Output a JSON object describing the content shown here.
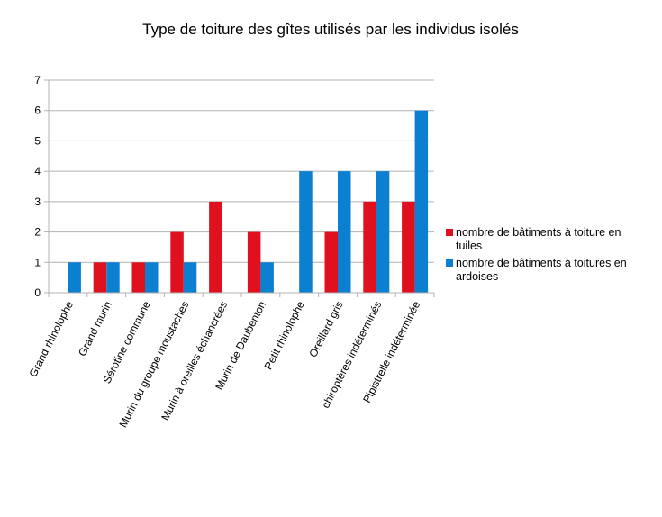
{
  "chart_data": {
    "type": "bar",
    "title": "Type de toiture des gîtes utilisés par les individus isolés",
    "xlabel": "",
    "ylabel": "",
    "ylim": [
      0,
      7
    ],
    "yticks": [
      0,
      1,
      2,
      3,
      4,
      5,
      6,
      7
    ],
    "grid": true,
    "legend_position": "right",
    "categories": [
      "Grand rhinolophe",
      "Grand murin",
      "Sérotine commune",
      "Murin du groupe moustaches",
      "Murin à oreilles échancrées",
      "Murin de Daubenton",
      "Petit rhinolophe",
      "Oreillard gris",
      "chiroptères indéterminés",
      "Pipistrelle indéterminée"
    ],
    "series": [
      {
        "name": "nombre de bâtiments à toiture en tuiles",
        "legend_lines": [
          "nombre de bâtiments à toiture en",
          "tuiles"
        ],
        "color": "#e0101e",
        "values": [
          0,
          1,
          1,
          2,
          3,
          2,
          0,
          2,
          3,
          3
        ]
      },
      {
        "name": "nombre de bâtiments à toitures en ardoises",
        "legend_lines": [
          "nombre de bâtiments à toitures en",
          "ardoises"
        ],
        "color": "#0b7fd0",
        "values": [
          1,
          1,
          1,
          1,
          0,
          1,
          4,
          4,
          4,
          6
        ]
      }
    ]
  }
}
